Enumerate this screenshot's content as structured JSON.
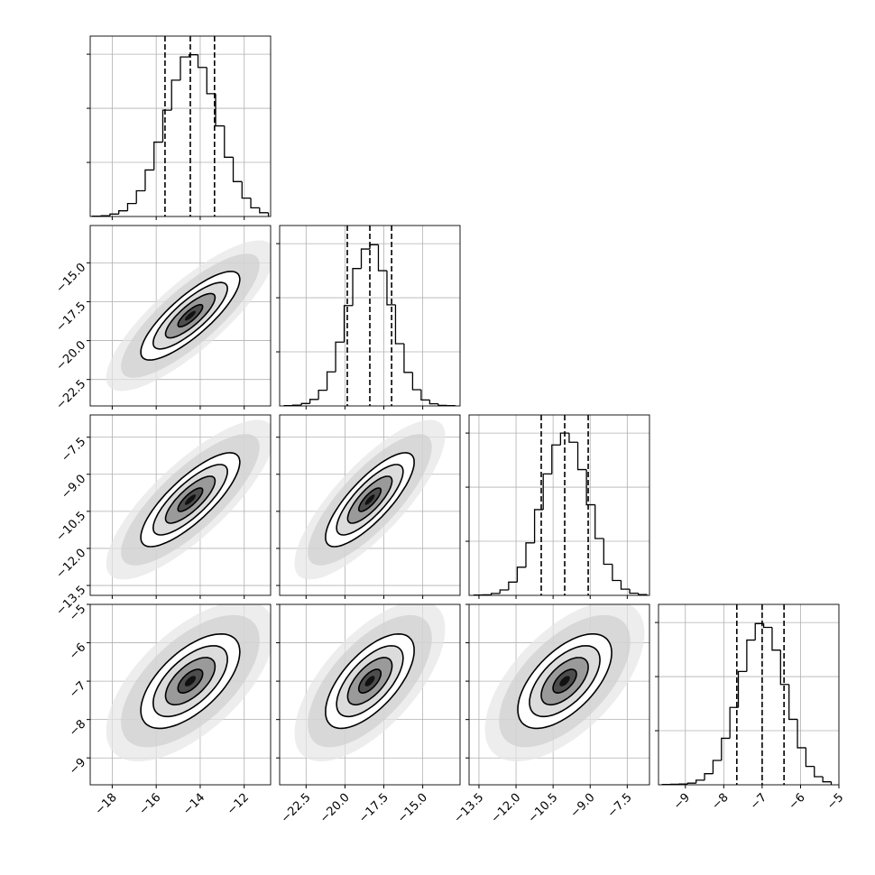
{
  "chart_data": {
    "type": "corner",
    "grid": true,
    "color": "#000000",
    "hist_ylim": [
      0,
      667
    ],
    "hist_yticks": [
      200,
      400,
      600
    ],
    "params": [
      {
        "lim": [
          -19.0,
          -10.8
        ],
        "ticks": [
          {
            "value": -18,
            "label": "−18"
          },
          {
            "value": -16,
            "label": "−16"
          },
          {
            "value": -14,
            "label": "−14"
          },
          {
            "value": -12,
            "label": "−12"
          }
        ],
        "quantiles": [
          -15.6,
          -14.45,
          -13.35
        ],
        "bins": [
          -18.9,
          -18.5,
          -18.1,
          -17.7,
          -17.3,
          -16.9,
          -16.5,
          -16.1,
          -15.7,
          -15.3,
          -14.9,
          -14.5,
          -14.1,
          -13.7,
          -13.3,
          -12.9,
          -12.5,
          -12.1,
          -11.7,
          -11.3,
          -10.9
        ],
        "counts": [
          1,
          3,
          9,
          21,
          48,
          95,
          172,
          275,
          393,
          504,
          590,
          598,
          551,
          454,
          335,
          219,
          129,
          68,
          32,
          14
        ]
      },
      {
        "lim": [
          -24.2,
          -12.6
        ],
        "ticks": [
          {
            "value": -22.5,
            "label": "−22.5"
          },
          {
            "value": -20.0,
            "label": "−20.0"
          },
          {
            "value": -17.5,
            "label": "−17.5"
          },
          {
            "value": -15.0,
            "label": "−15.0"
          }
        ],
        "quantiles": [
          -19.85,
          -18.4,
          -17.0
        ],
        "bins": [
          -23.9,
          -23.35,
          -22.8,
          -22.25,
          -21.7,
          -21.15,
          -20.6,
          -20.05,
          -19.5,
          -18.95,
          -18.4,
          -17.85,
          -17.3,
          -16.75,
          -16.2,
          -15.65,
          -15.1,
          -14.55,
          -14.0,
          -13.45,
          -12.9
        ],
        "counts": [
          1,
          3,
          9,
          24,
          58,
          126,
          236,
          371,
          508,
          580,
          596,
          500,
          374,
          230,
          124,
          60,
          22,
          8,
          2,
          1
        ]
      },
      {
        "lim": [
          -13.9,
          -6.6
        ],
        "ticks": [
          {
            "value": -13.5,
            "label": "−13.5"
          },
          {
            "value": -12.0,
            "label": "−12.0"
          },
          {
            "value": -10.5,
            "label": "−10.5"
          },
          {
            "value": -9.0,
            "label": "−9.0"
          },
          {
            "value": -7.5,
            "label": "−7.5"
          }
        ],
        "quantiles": [
          -10.98,
          -10.03,
          -9.08
        ],
        "bins": [
          -13.7,
          -13.35,
          -13.0,
          -12.65,
          -12.3,
          -11.95,
          -11.6,
          -11.25,
          -10.9,
          -10.55,
          -10.2,
          -9.85,
          -9.5,
          -9.15,
          -8.8,
          -8.45,
          -8.1,
          -7.75,
          -7.4,
          -7.05,
          -6.7
        ],
        "counts": [
          1,
          2,
          7,
          20,
          49,
          104,
          194,
          317,
          449,
          556,
          600,
          566,
          465,
          335,
          210,
          115,
          55,
          23,
          8,
          3
        ]
      },
      {
        "lim": [
          -9.7,
          -5.0
        ],
        "ticks": [
          {
            "value": -9,
            "label": "−9"
          },
          {
            "value": -8,
            "label": "−8"
          },
          {
            "value": -7,
            "label": "−7"
          },
          {
            "value": -6,
            "label": "−6"
          },
          {
            "value": -5,
            "label": "−5"
          }
        ],
        "quantiles": [
          -7.66,
          -7.0,
          -6.43
        ],
        "bins": [
          -9.6,
          -9.38,
          -9.16,
          -8.94,
          -8.72,
          -8.5,
          -8.28,
          -8.06,
          -7.84,
          -7.62,
          -7.4,
          -7.18,
          -6.96,
          -6.74,
          -6.52,
          -6.3,
          -6.08,
          -5.86,
          -5.64,
          -5.42,
          -5.2
        ],
        "counts": [
          1,
          2,
          3,
          6,
          17,
          41,
          90,
          172,
          286,
          419,
          535,
          596,
          582,
          498,
          371,
          242,
          137,
          68,
          30,
          11
        ]
      }
    ],
    "pairs": [
      {
        "corr": 0.82
      },
      {
        "corr": 0.8
      },
      {
        "corr": 0.8
      },
      {
        "corr": 0.62
      },
      {
        "corr": 0.65
      },
      {
        "corr": 0.6
      }
    ]
  }
}
